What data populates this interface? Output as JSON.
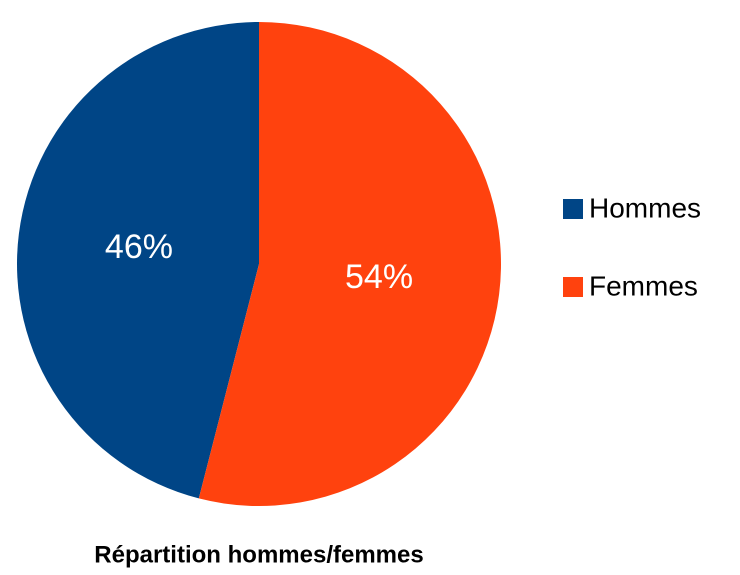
{
  "chart_data": {
    "type": "pie",
    "title": "Répartition hommes/femmes",
    "categories": [
      "Hommes",
      "Femmes"
    ],
    "values": [
      46,
      54
    ],
    "value_labels": [
      "46%",
      "54%"
    ],
    "colors": [
      "#004586",
      "#ff420e"
    ],
    "legend": "right"
  }
}
